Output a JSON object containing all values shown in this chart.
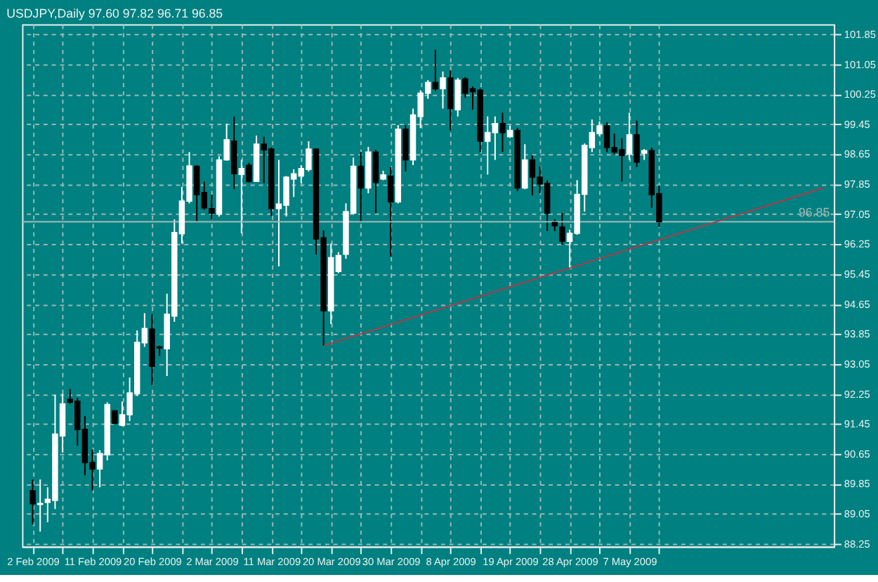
{
  "chart_data": {
    "type": "candlestick",
    "title": "USDJPY,Daily  97.60 97.82 96.71 96.85",
    "categories": [
      "2 Feb 2009",
      null,
      null,
      null,
      null,
      null,
      null,
      null,
      "11 Feb 2009",
      null,
      null,
      null,
      null,
      null,
      null,
      null,
      "20 Feb 2009",
      null,
      null,
      null,
      null,
      null,
      null,
      null,
      "2 Mar 2009",
      null,
      null,
      null,
      null,
      null,
      null,
      null,
      "11 Mar 2009",
      null,
      null,
      null,
      null,
      null,
      null,
      null,
      "20 Mar 2009",
      null,
      null,
      null,
      null,
      null,
      null,
      null,
      "30 Mar 2009",
      null,
      null,
      null,
      null,
      null,
      null,
      null,
      "8 Apr 2009",
      null,
      null,
      null,
      null,
      null,
      null,
      null,
      "19 Apr 2009",
      null,
      null,
      null,
      null,
      null,
      null,
      null,
      "28 Apr 2009",
      null,
      null,
      null,
      null,
      null,
      null,
      null,
      "7 May 2009",
      null,
      null,
      null,
      null,
      null,
      null,
      null,
      null,
      null,
      null,
      null,
      null,
      null,
      null,
      null,
      null,
      null,
      null,
      null,
      null,
      null,
      null,
      null,
      null,
      null,
      null
    ],
    "ohlc": [
      [
        89.67,
        89.97,
        88.77,
        89.32
      ],
      [
        89.3,
        89.97,
        88.58,
        89.33
      ],
      [
        89.36,
        89.76,
        88.83,
        89.44
      ],
      [
        89.41,
        92.23,
        89.18,
        91.18
      ],
      [
        91.13,
        92.26,
        90.69,
        91.99
      ],
      [
        92.11,
        92.38,
        91.99,
        92.03
      ],
      [
        92.06,
        92.15,
        90.87,
        91.3
      ],
      [
        91.31,
        91.66,
        90.08,
        90.42
      ],
      [
        90.42,
        90.77,
        89.67,
        90.25
      ],
      [
        90.25,
        90.75,
        89.76,
        90.66
      ],
      [
        90.63,
        92.03,
        90.48,
        91.97
      ],
      [
        91.8,
        91.82,
        91.45,
        91.47
      ],
      [
        91.42,
        92.05,
        91.39,
        91.7
      ],
      [
        91.7,
        92.69,
        91.53,
        92.28
      ],
      [
        92.26,
        93.95,
        92.2,
        93.63
      ],
      [
        93.62,
        94.41,
        93.51,
        94.0
      ],
      [
        93.98,
        94.38,
        92.49,
        92.99
      ],
      [
        93.51,
        93.54,
        93.27,
        93.48
      ],
      [
        93.46,
        94.93,
        92.73,
        94.38
      ],
      [
        94.33,
        96.91,
        94.18,
        96.56
      ],
      [
        96.53,
        97.78,
        96.27,
        97.4
      ],
      [
        97.4,
        98.71,
        97.34,
        98.34
      ],
      [
        98.33,
        98.36,
        96.83,
        97.57
      ],
      [
        97.63,
        97.92,
        97.17,
        97.22
      ],
      [
        97.2,
        97.57,
        96.91,
        97.08
      ],
      [
        97.05,
        98.6,
        96.99,
        98.5
      ],
      [
        98.5,
        99.47,
        98.48,
        99.04
      ],
      [
        99.0,
        99.66,
        97.72,
        98.13
      ],
      [
        98.11,
        98.5,
        96.54,
        98.27
      ],
      [
        98.36,
        98.42,
        97.9,
        97.92
      ],
      [
        97.93,
        99.15,
        97.92,
        98.92
      ],
      [
        98.92,
        99.12,
        97.88,
        98.77
      ],
      [
        98.79,
        98.83,
        97.0,
        97.2
      ],
      [
        97.2,
        98.5,
        95.66,
        97.32
      ],
      [
        97.29,
        98.07,
        96.99,
        98.04
      ],
      [
        97.99,
        98.25,
        97.51,
        98.13
      ],
      [
        98.07,
        98.36,
        97.88,
        98.27
      ],
      [
        98.25,
        99.0,
        98.19,
        98.79
      ],
      [
        98.79,
        98.8,
        95.98,
        96.39
      ],
      [
        96.42,
        96.62,
        93.54,
        94.47
      ],
      [
        94.47,
        96.27,
        94.12,
        95.89
      ],
      [
        95.52,
        96.04,
        95.48,
        95.95
      ],
      [
        95.98,
        97.34,
        95.86,
        97.12
      ],
      [
        97.08,
        98.56,
        97.05,
        98.33
      ],
      [
        98.33,
        98.71,
        96.85,
        97.75
      ],
      [
        97.75,
        98.85,
        97.61,
        98.71
      ],
      [
        98.71,
        98.77,
        97.08,
        97.9
      ],
      [
        97.99,
        98.21,
        97.96,
        98.1
      ],
      [
        98.07,
        98.31,
        95.92,
        97.38
      ],
      [
        97.38,
        99.43,
        97.34,
        99.32
      ],
      [
        99.32,
        99.43,
        98.19,
        98.5
      ],
      [
        98.5,
        99.87,
        98.36,
        99.7
      ],
      [
        99.66,
        100.36,
        99.35,
        100.28
      ],
      [
        100.28,
        100.63,
        100.13,
        100.57
      ],
      [
        100.57,
        101.44,
        100.34,
        100.4
      ],
      [
        100.4,
        100.86,
        99.87,
        100.69
      ],
      [
        100.69,
        100.89,
        99.29,
        99.87
      ],
      [
        99.84,
        100.69,
        99.66,
        100.63
      ],
      [
        100.66,
        100.71,
        100.16,
        100.28
      ],
      [
        100.4,
        100.46,
        99.84,
        100.32
      ],
      [
        100.36,
        100.4,
        98.71,
        99.0
      ],
      [
        99.0,
        99.66,
        98.11,
        99.23
      ],
      [
        99.23,
        99.66,
        98.5,
        99.47
      ],
      [
        99.47,
        99.76,
        98.71,
        99.23
      ],
      [
        99.12,
        99.41,
        99.09,
        99.29
      ],
      [
        99.29,
        99.35,
        97.67,
        97.75
      ],
      [
        97.75,
        98.92,
        97.72,
        98.5
      ],
      [
        98.5,
        98.62,
        97.55,
        98.04
      ],
      [
        98.04,
        98.33,
        97.61,
        97.86
      ],
      [
        97.87,
        97.96,
        96.6,
        97.08
      ],
      [
        96.83,
        96.91,
        96.6,
        96.74
      ],
      [
        96.71,
        97.08,
        96.24,
        96.33
      ],
      [
        96.33,
        96.64,
        95.6,
        96.54
      ],
      [
        96.54,
        97.96,
        96.5,
        97.58
      ],
      [
        97.58,
        98.94,
        97.12,
        98.89
      ],
      [
        98.83,
        99.58,
        98.71,
        99.23
      ],
      [
        99.2,
        99.53,
        99.14,
        99.41
      ],
      [
        99.41,
        99.5,
        98.71,
        98.83
      ],
      [
        98.83,
        99.2,
        98.65,
        98.71
      ],
      [
        98.77,
        99.08,
        97.92,
        98.62
      ],
      [
        98.65,
        99.76,
        98.5,
        99.17
      ],
      [
        99.17,
        99.55,
        98.31,
        98.44
      ],
      [
        98.68,
        98.79,
        98.5,
        98.75
      ],
      [
        98.75,
        98.83,
        97.22,
        97.57
      ],
      [
        97.6,
        97.82,
        96.71,
        96.85
      ],
      null,
      null,
      null,
      null,
      null,
      null,
      null,
      null,
      null,
      null,
      null,
      null,
      null,
      null,
      null,
      null,
      null,
      null,
      null,
      null,
      null,
      null
    ],
    "colors": [
      "#000000",
      "#ffffff",
      "#ffffff",
      "#ffffff",
      "#ffffff",
      "#000000",
      "#000000",
      "#000000",
      "#000000",
      "#ffffff",
      "#ffffff",
      "#000000",
      "#ffffff",
      "#ffffff",
      "#ffffff",
      "#ffffff",
      "#000000",
      "#000000",
      "#ffffff",
      "#ffffff",
      "#ffffff",
      "#ffffff",
      "#000000",
      "#000000",
      "#000000",
      "#ffffff",
      "#ffffff",
      "#000000",
      "#ffffff",
      "#000000",
      "#ffffff",
      "#000000",
      "#000000",
      "#ffffff",
      "#ffffff",
      "#ffffff",
      "#ffffff",
      "#ffffff",
      "#000000",
      "#000000",
      "#ffffff",
      "#ffffff",
      "#ffffff",
      "#ffffff",
      "#000000",
      "#ffffff",
      "#000000",
      "#ffffff",
      "#000000",
      "#ffffff",
      "#000000",
      "#ffffff",
      "#ffffff",
      "#ffffff",
      "#000000",
      "#ffffff",
      "#000000",
      "#ffffff",
      "#000000",
      "#000000",
      "#000000",
      "#ffffff",
      "#ffffff",
      "#000000",
      "#ffffff",
      "#000000",
      "#ffffff",
      "#000000",
      "#000000",
      "#000000",
      "#000000",
      "#000000",
      "#ffffff",
      "#ffffff",
      "#ffffff",
      "#ffffff",
      "#ffffff",
      "#000000",
      "#000000",
      "#000000",
      "#ffffff",
      "#000000",
      "#ffffff",
      "#000000",
      "#000000",
      null,
      null,
      null,
      null,
      null,
      null,
      null,
      null,
      null,
      null,
      null,
      null,
      null,
      null,
      null,
      null,
      null,
      null,
      null,
      null,
      null,
      null
    ],
    "series": [
      {
        "type": "line",
        "values": [
          null,
          null,
          null,
          null,
          null,
          null,
          null,
          null,
          null,
          null,
          null,
          null,
          null,
          null,
          null,
          null,
          null,
          null,
          null,
          null,
          null,
          null,
          null,
          null,
          null,
          null,
          null,
          null,
          null,
          null,
          null,
          null,
          null,
          null,
          null,
          null,
          null,
          null,
          null,
          93.54,
          null,
          null,
          null,
          null,
          null,
          null,
          null,
          null,
          null,
          null,
          null,
          null,
          null,
          null,
          null,
          null,
          null,
          null,
          null,
          null,
          null,
          null,
          null,
          null,
          null,
          null,
          null,
          null,
          null,
          null,
          null,
          null,
          null,
          null,
          null,
          null,
          null,
          null,
          null,
          null,
          null,
          null,
          null,
          null,
          null,
          null,
          null,
          null,
          null,
          null,
          null,
          null,
          null,
          null,
          null,
          null,
          null,
          null,
          null,
          null,
          null,
          null,
          null,
          null,
          null,
          null,
          97.75
        ],
        "color": "#b03a48"
      }
    ],
    "ref_lines": [
      {
        "axis": "y",
        "value": 96.85,
        "label": "96.85",
        "color": "#a8b8b8"
      }
    ],
    "ylim": [
      88.18,
      102.12
    ],
    "yticks": [
      88.25,
      89.05,
      89.85,
      90.65,
      91.45,
      92.25,
      93.05,
      93.85,
      94.65,
      95.45,
      96.25,
      97.05,
      97.85,
      98.65,
      99.45,
      100.25,
      101.05,
      101.85
    ],
    "grid": true
  }
}
